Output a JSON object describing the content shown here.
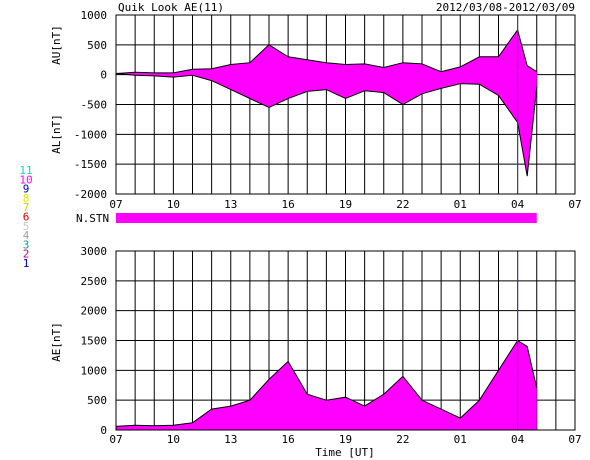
{
  "header": {
    "title": "Quik Look AE(11)",
    "date_range": "2012/03/08-2012/03/09"
  },
  "station_legend": {
    "items": [
      {
        "label": "11",
        "color": "#00d8d8"
      },
      {
        "label": "10",
        "color": "#ff00ff"
      },
      {
        "label": "9",
        "color": "#0000c8"
      },
      {
        "label": "8",
        "color": "#e8e800"
      },
      {
        "label": "7",
        "color": "#b8d800"
      },
      {
        "label": "6",
        "color": "#e00000"
      },
      {
        "label": "5",
        "color": "#c8c8c8"
      },
      {
        "label": "4",
        "color": "#a0a0a0"
      },
      {
        "label": "3",
        "color": "#00a0a0"
      },
      {
        "label": "2",
        "color": "#c00090"
      },
      {
        "label": "1",
        "color": "#0000b0"
      }
    ]
  },
  "nstn": {
    "label": "N.STN",
    "color": "#ff00ff"
  },
  "colors": {
    "fill": "#ff00ff",
    "line": "#000000",
    "marker": "#4040a0"
  },
  "chart_data": [
    {
      "type": "area",
      "ylabel_upper": "AU[nT]",
      "ylabel_lower": "AL[nT]",
      "ylim": [
        -2000,
        1000
      ],
      "yticks": [
        "1000",
        "500",
        "0",
        "-500",
        "-1000",
        "-1500",
        "-2000"
      ],
      "xticks": [
        "07",
        "10",
        "13",
        "16",
        "19",
        "22",
        "01",
        "04",
        "07"
      ],
      "x_hours": [
        7,
        8,
        9,
        10,
        11,
        12,
        13,
        14,
        15,
        16,
        17,
        18,
        19,
        20,
        21,
        22,
        23,
        24,
        25,
        26,
        27,
        28,
        28.5,
        29
      ],
      "au": [
        20,
        40,
        30,
        30,
        90,
        100,
        170,
        200,
        500,
        300,
        250,
        200,
        170,
        180,
        120,
        200,
        180,
        50,
        130,
        300,
        300,
        750,
        150,
        50
      ],
      "al": [
        20,
        -10,
        -20,
        -40,
        -10,
        -100,
        -250,
        -400,
        -550,
        -400,
        -280,
        -250,
        -400,
        -270,
        -300,
        -500,
        -320,
        -230,
        -150,
        -160,
        -350,
        -800,
        -1700,
        -200
      ],
      "marker_x": 28.0
    },
    {
      "type": "area",
      "ylabel": "AE[nT]",
      "xlabel": "Time [UT]",
      "ylim": [
        0,
        3000
      ],
      "yticks": [
        "3000",
        "2500",
        "2000",
        "1500",
        "1000",
        "500",
        "0"
      ],
      "xticks": [
        "07",
        "10",
        "13",
        "16",
        "19",
        "22",
        "01",
        "04",
        "07"
      ],
      "x_hours": [
        7,
        8,
        9,
        10,
        11,
        12,
        13,
        14,
        15,
        16,
        17,
        18,
        19,
        20,
        21,
        22,
        23,
        24,
        25,
        26,
        27,
        28,
        28.5,
        29
      ],
      "values": [
        60,
        80,
        70,
        80,
        120,
        350,
        400,
        500,
        850,
        1150,
        600,
        500,
        550,
        400,
        600,
        900,
        500,
        350,
        200,
        500,
        1000,
        1500,
        1400,
        700
      ],
      "marker_x": 28.0
    }
  ]
}
